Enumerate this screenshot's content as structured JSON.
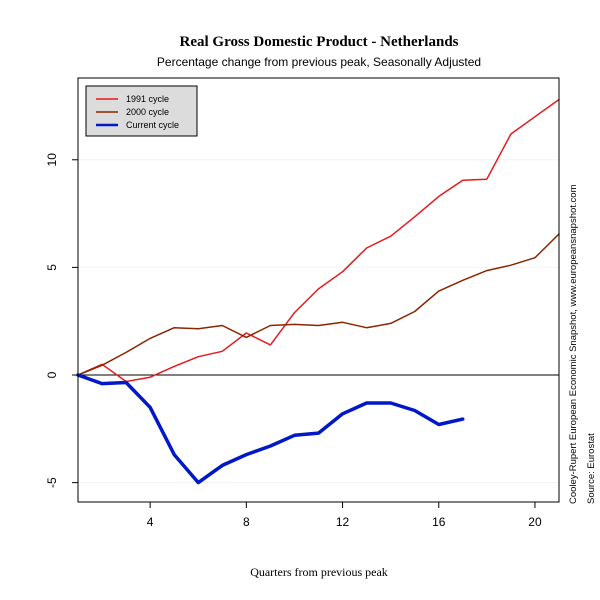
{
  "chart_data": {
    "type": "line",
    "title": "Real Gross Domestic Product - Netherlands",
    "subtitle": "Percentage change from previous peak, Seasonally Adjusted",
    "xlabel": "Quarters from previous peak",
    "ylabel": "",
    "xlim": [
      1,
      21
    ],
    "ylim": [
      -5.9,
      13.8
    ],
    "x_ticks": [
      4,
      8,
      12,
      16,
      20
    ],
    "y_ticks": [
      -5,
      0,
      5,
      10
    ],
    "zero_line": true,
    "legend_position": "top-left",
    "series": [
      {
        "name": "1991 cycle",
        "color": "#e41a1c",
        "width": 1.5,
        "x": [
          1,
          2,
          3,
          4,
          5,
          6,
          7,
          8,
          9,
          10,
          11,
          12,
          13,
          14,
          15,
          16,
          17,
          18,
          19,
          20,
          21
        ],
        "values": [
          0.0,
          0.5,
          -0.3,
          -0.1,
          0.4,
          0.85,
          1.1,
          1.95,
          1.4,
          2.9,
          4.0,
          4.8,
          5.9,
          6.45,
          7.35,
          8.3,
          9.05,
          9.1,
          11.2,
          12.0,
          12.8
        ]
      },
      {
        "name": "2000 cycle",
        "color": "#8b2500",
        "width": 1.5,
        "x": [
          1,
          2,
          3,
          4,
          5,
          6,
          7,
          8,
          9,
          10,
          11,
          12,
          13,
          14,
          15,
          16,
          17,
          18,
          19,
          20,
          21
        ],
        "values": [
          0.0,
          0.45,
          1.05,
          1.7,
          2.2,
          2.15,
          2.3,
          1.75,
          2.3,
          2.35,
          2.3,
          2.45,
          2.2,
          2.4,
          2.95,
          3.9,
          4.4,
          4.85,
          5.1,
          5.45,
          6.55
        ]
      },
      {
        "name": "Current cycle",
        "color": "#0018c8",
        "width": 3.5,
        "x": [
          1,
          2,
          3,
          4,
          5,
          6,
          7,
          8,
          9,
          10,
          11,
          12,
          13,
          14,
          15,
          16,
          17
        ],
        "values": [
          0.0,
          -0.4,
          -0.35,
          -1.5,
          -3.7,
          -5.0,
          -4.2,
          -3.7,
          -3.3,
          -2.8,
          -2.7,
          -1.8,
          -1.3,
          -1.3,
          -1.65,
          -2.3,
          -2.05
        ]
      }
    ],
    "side_notes": [
      "Cooley-Rupert European Economic Snapshot, www.europeansnapshot.com",
      "Source: Eurostat"
    ]
  }
}
